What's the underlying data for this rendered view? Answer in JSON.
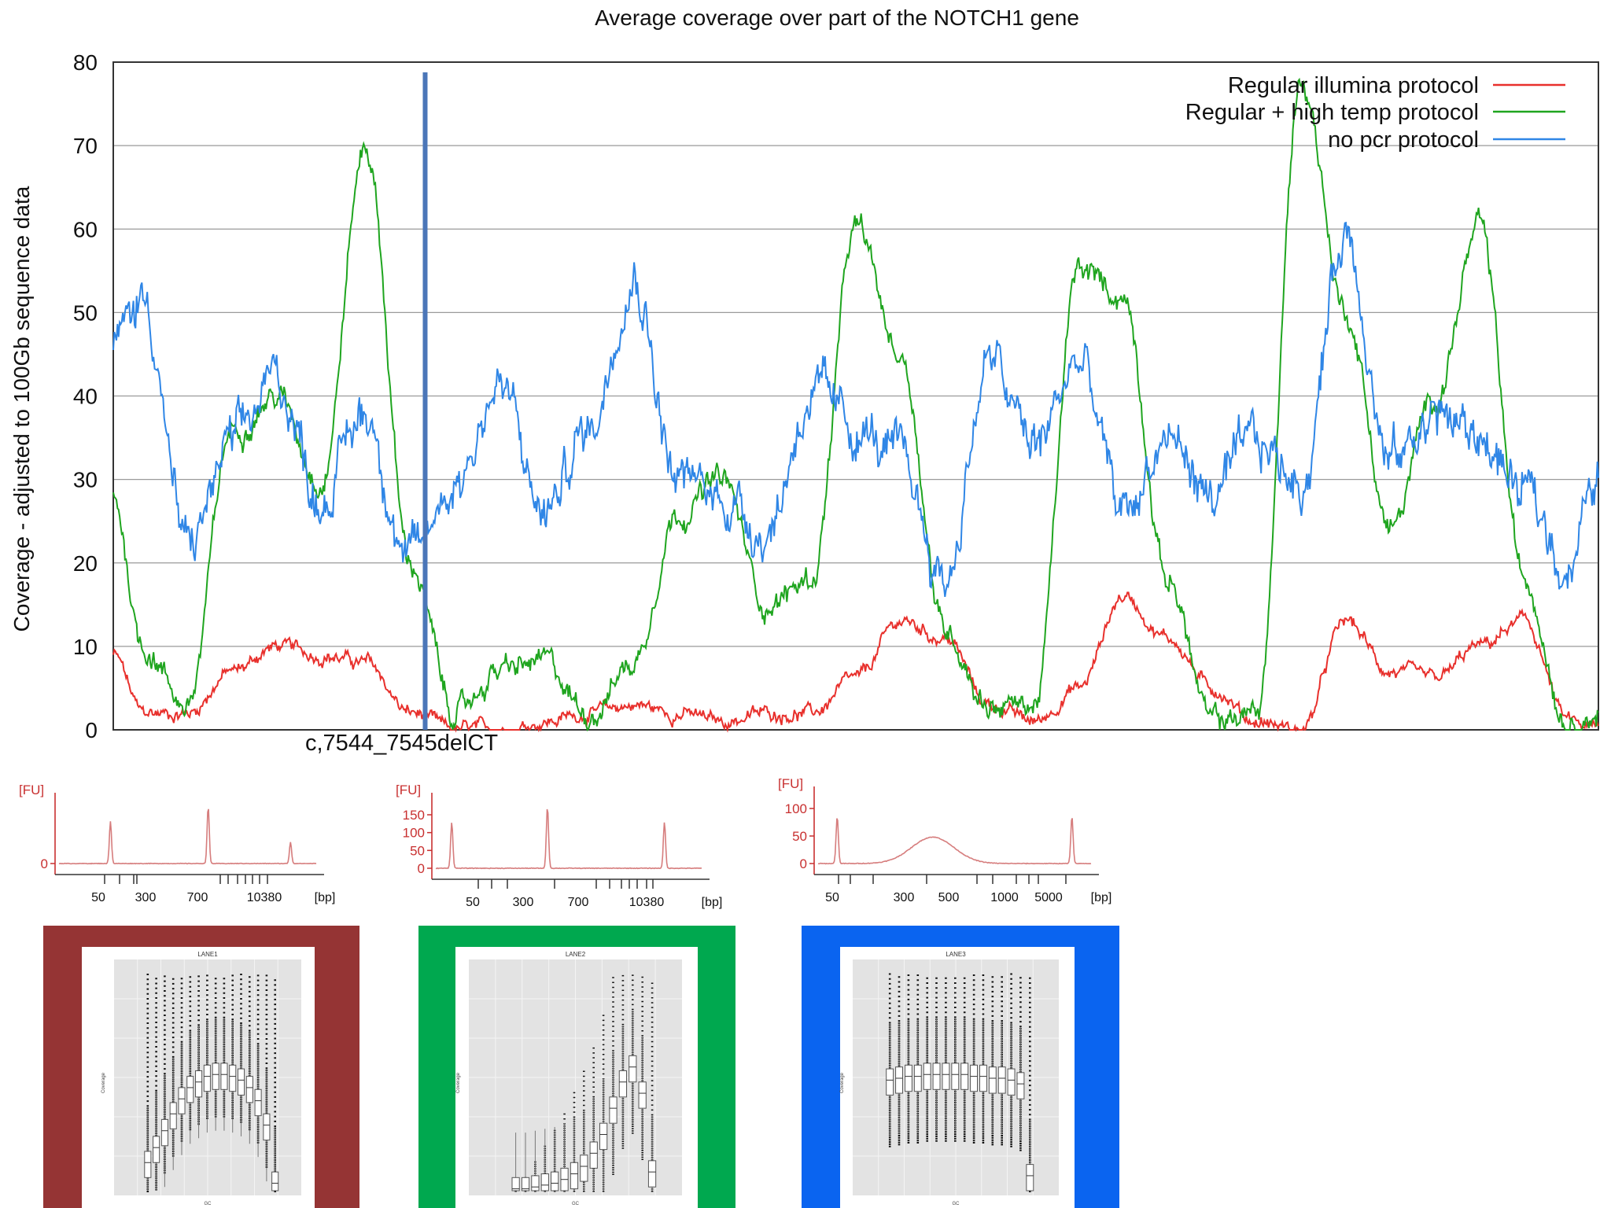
{
  "chart_data": [
    {
      "type": "line",
      "title": "Average coverage over part of the NOTCH1 gene",
      "xlabel": "",
      "ylabel": "Coverage - adjusted to 100Gb sequence data",
      "ylim": [
        0,
        80
      ],
      "yticks": [
        "0",
        "10",
        "20",
        "30",
        "40",
        "50",
        "60",
        "70",
        "80"
      ],
      "grid": "horizontal",
      "legend_position": "top-right",
      "annotation": "c,7544_7545delCT",
      "marker_x": 0.21,
      "x": [
        0,
        0.02,
        0.05,
        0.08,
        0.11,
        0.14,
        0.17,
        0.2,
        0.23,
        0.26,
        0.29,
        0.32,
        0.35,
        0.38,
        0.41,
        0.44,
        0.47,
        0.5,
        0.53,
        0.56,
        0.59,
        0.62,
        0.65,
        0.68,
        0.71,
        0.74,
        0.77,
        0.8,
        0.83,
        0.86,
        0.89,
        0.92,
        0.95,
        0.98,
        1.0
      ],
      "series": [
        {
          "name": "Regular illumina protocol",
          "color": "#e8302c",
          "values": [
            9,
            2,
            2,
            7,
            10,
            9,
            8,
            2,
            0,
            0,
            1,
            2,
            3,
            2,
            1,
            2,
            2,
            6,
            13,
            11,
            3,
            1,
            5,
            16,
            11,
            5,
            1,
            0,
            13,
            7,
            6,
            10,
            13,
            1,
            0
          ]
        },
        {
          "name": "Regular + high temp protocol",
          "color": "#1fa51f",
          "values": [
            28,
            10,
            3,
            36,
            40,
            30,
            70,
            20,
            2,
            7,
            8,
            2,
            8,
            26,
            30,
            15,
            18,
            60,
            45,
            12,
            3,
            3,
            55,
            52,
            18,
            1,
            2,
            78,
            50,
            24,
            40,
            60,
            18,
            1,
            2
          ]
        },
        {
          "name": "no pcr protocol",
          "color": "#2f86e6",
          "values": [
            46,
            52,
            22,
            34,
            42,
            28,
            38,
            20,
            30,
            41,
            26,
            36,
            55,
            30,
            28,
            24,
            40,
            36,
            32,
            18,
            44,
            34,
            44,
            26,
            35,
            28,
            34,
            30,
            60,
            32,
            38,
            35,
            28,
            20,
            30
          ]
        }
      ]
    },
    {
      "type": "line",
      "title": "",
      "ylabel": "[FU]",
      "yticks": [
        "0"
      ],
      "xlabel": "[bp]",
      "xticks": [
        "50",
        "300",
        "700",
        "10380"
      ],
      "peaks": [
        0.2,
        0.58,
        0.9
      ]
    },
    {
      "type": "line",
      "title": "",
      "ylabel": "[FU]",
      "yticks": [
        "0",
        "50",
        "100",
        "150"
      ],
      "xlabel": "[bp]",
      "xticks": [
        "50",
        "300",
        "700",
        "10380"
      ],
      "peaks": [
        0.06,
        0.42,
        0.86
      ]
    },
    {
      "type": "line",
      "title": "",
      "ylabel": "[FU]",
      "yticks": [
        "0",
        "50",
        "100"
      ],
      "xlabel": "[bp]",
      "xticks": [
        "50",
        "300",
        "500",
        "1000",
        "5000"
      ],
      "peaks": [
        0.07,
        0.5,
        0.93
      ]
    },
    {
      "type": "box",
      "title": "LANE1",
      "frame_color": "#953434",
      "medians": [
        1.5,
        2.3,
        3.2,
        4.1,
        4.9,
        5.5,
        5.8,
        6.1,
        6.2,
        6.2,
        6.1,
        5.9,
        5.5,
        4.8,
        3.5,
        0.4
      ]
    },
    {
      "type": "box",
      "title": "LANE2",
      "frame_color": "#00a84f",
      "medians": [
        0.1,
        0.1,
        0.2,
        0.3,
        0.4,
        0.6,
        0.9,
        1.3,
        2.0,
        3.0,
        4.4,
        5.8,
        6.6,
        5.2,
        1.0
      ]
    },
    {
      "type": "box",
      "title": "LANE3",
      "frame_color": "#0a64f0",
      "medians": [
        5.9,
        6.0,
        6.1,
        6.1,
        6.2,
        6.2,
        6.2,
        6.2,
        6.2,
        6.1,
        6.1,
        6.0,
        6.0,
        5.9,
        5.7,
        0.8
      ]
    }
  ]
}
